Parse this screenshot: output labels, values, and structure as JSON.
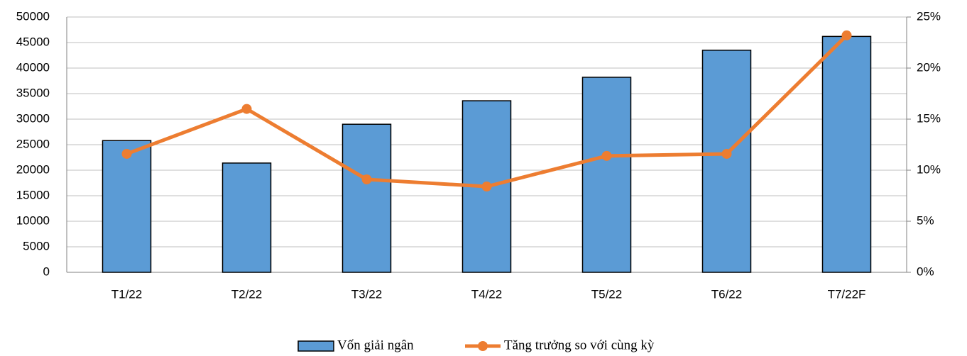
{
  "chart_data": {
    "type": "bar",
    "categories": [
      "T1/22",
      "T2/22",
      "T3/22",
      "T4/22",
      "T5/22",
      "T6/22",
      "T7/22F"
    ],
    "series": [
      {
        "name": "Vốn giải ngân",
        "color": "#5b9bd5",
        "values": [
          25800,
          21400,
          29000,
          33600,
          38200,
          43500,
          46200
        ]
      },
      {
        "name": "Tăng trưởng so với cùng kỳ",
        "color": "#ed7d31",
        "type": "line",
        "axis": "y2",
        "values": [
          11.6,
          16.0,
          9.1,
          8.4,
          11.4,
          11.6,
          23.2
        ]
      }
    ],
    "ylim": [
      0,
      50000
    ],
    "yticks": [
      0,
      5000,
      10000,
      15000,
      20000,
      25000,
      30000,
      35000,
      40000,
      45000,
      50000
    ],
    "y2lim": [
      0,
      25
    ],
    "y2ticks": [
      {
        "value": 0,
        "label": "0%"
      },
      {
        "value": 5,
        "label": "5%"
      },
      {
        "value": 10,
        "label": "10%"
      },
      {
        "value": 15,
        "label": "15%"
      },
      {
        "value": 20,
        "label": "20%"
      },
      {
        "value": 25,
        "label": "25%"
      }
    ],
    "grid": true,
    "legend": "bottom"
  }
}
